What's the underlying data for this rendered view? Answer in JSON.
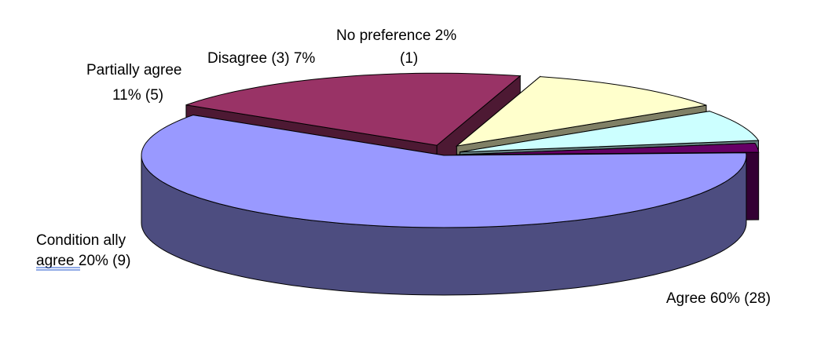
{
  "chart_data": {
    "type": "pie",
    "style": "3d-exploded",
    "title": "",
    "slices": [
      {
        "name": "Agree",
        "percent": 60,
        "count": 28,
        "color": "#9999FF",
        "side_color": "#4D4D80",
        "label_lines": [
          "Agree  60% (28)"
        ]
      },
      {
        "name": "Conditionally agree",
        "percent": 20,
        "count": 9,
        "color": "#993366",
        "side_color": "#4D1933",
        "label_lines": [
          "Condition ally",
          "agree 20%  (9)"
        ]
      },
      {
        "name": "Partially agree",
        "percent": 11,
        "count": 5,
        "color": "#FFFFCC",
        "side_color": "#808066",
        "label_lines": [
          "Partially agree",
          "11% (5)"
        ]
      },
      {
        "name": "Disagree",
        "percent": 7,
        "count": 3,
        "color": "#CCFFFF",
        "side_color": "#668080",
        "label_lines": [
          "Disagree (3) 7%"
        ]
      },
      {
        "name": "No preference",
        "percent": 2,
        "count": 1,
        "color": "#660066",
        "side_color": "#330033",
        "label_lines": [
          "No preference 2%",
          "(1)"
        ]
      }
    ]
  }
}
